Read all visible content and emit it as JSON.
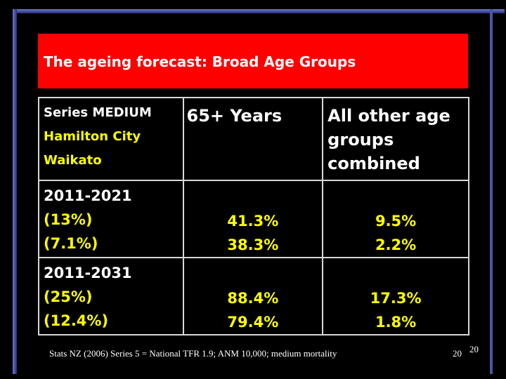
{
  "title": "The ageing forecast: Broad Age Groups",
  "header": {
    "col1_line1": "Series MEDIUM",
    "col1_line2": "Hamilton City",
    "col1_line3": "Waikato",
    "col2": "65+ Years",
    "col3_line1": "All other age",
    "col3_line2": "groups",
    "col3_line3": "combined"
  },
  "rows": [
    {
      "period": "2011-2021",
      "hamilton": "(13%)",
      "waikato": "(7.1%)",
      "age65_hamilton": "41.3%",
      "age65_waikato": "38.3%",
      "other_hamilton": "9.5%",
      "other_waikato": "2.2%"
    },
    {
      "period": "2011-2031",
      "hamilton": "(25%)",
      "waikato": "(12.4%)",
      "age65_hamilton": "88.4%",
      "age65_waikato": "79.4%",
      "other_hamilton": "17.3%",
      "other_waikato": "1.8%"
    }
  ],
  "footnote": "Stats NZ (2006) Series 5 = National TFR 1.9; ANM 10,000; medium mortality",
  "page_number": "20",
  "slide_number": "20",
  "colors": {
    "title_bar": "#ff0000",
    "highlight_text": "#ffff00",
    "frame": "#4a55a8"
  }
}
